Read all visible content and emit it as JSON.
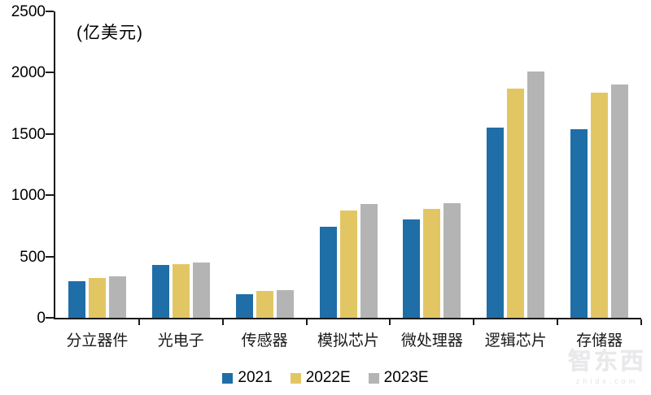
{
  "chart_data": {
    "type": "bar",
    "title": "",
    "unit_label": "(亿美元)",
    "categories": [
      "分立器件",
      "光电子",
      "传感器",
      "模拟芯片",
      "微处理器",
      "逻辑芯片",
      "存储器"
    ],
    "series": [
      {
        "name": "2021",
        "color": "#1F6EA7",
        "values": [
          300,
          430,
          190,
          740,
          800,
          1550,
          1540
        ]
      },
      {
        "name": "2022E",
        "color": "#E3C664",
        "values": [
          325,
          435,
          218,
          878,
          890,
          1870,
          1835
        ]
      },
      {
        "name": "2023E",
        "color": "#B4B4B4",
        "values": [
          340,
          450,
          228,
          930,
          938,
          2010,
          1900
        ]
      }
    ],
    "ylim": [
      0,
      2500
    ],
    "yticks": [
      0,
      500,
      1000,
      1500,
      2000,
      2500
    ],
    "grid": false,
    "legend_position": "bottom"
  },
  "watermark": {
    "brand": "智东西",
    "domain": "zhidx.com"
  }
}
